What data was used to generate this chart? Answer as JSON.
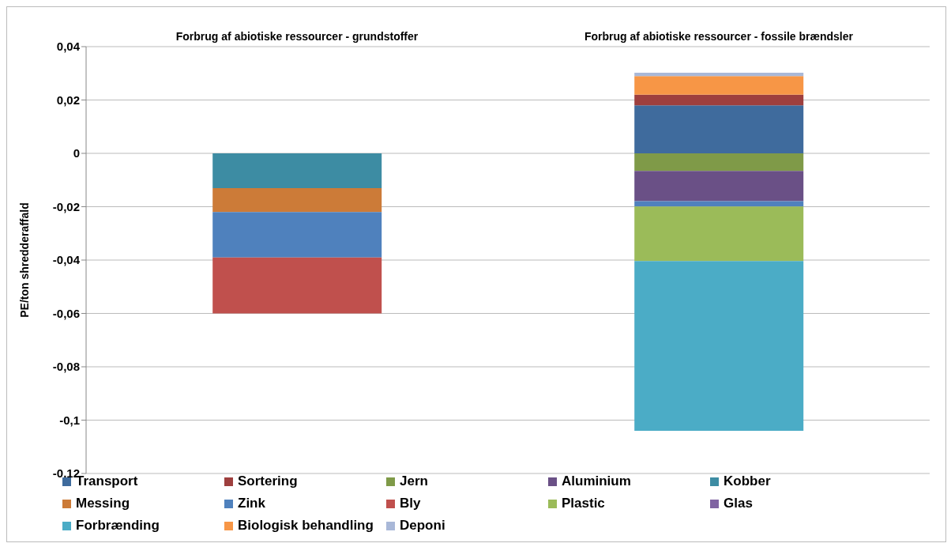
{
  "chart_data": {
    "type": "bar",
    "stacked": true,
    "ylabel": "PE/ton shredderaffald",
    "categories": [
      "Forbrug af abiotiske ressourcer - grundstoffer",
      "Forbrug af abiotiske ressourcer - fossile brændsler"
    ],
    "series": [
      {
        "name": "Transport",
        "color": "#3f6b9d",
        "values": [
          null,
          0.018
        ]
      },
      {
        "name": "Sortering",
        "color": "#9e3f3e",
        "values": [
          null,
          0.004
        ]
      },
      {
        "name": "Jern",
        "color": "#7f9a48",
        "values": [
          null,
          -0.0066
        ]
      },
      {
        "name": "Aluminium",
        "color": "#6a5086",
        "values": [
          null,
          -0.0113
        ]
      },
      {
        "name": "Kobber",
        "color": "#3d8ca3",
        "values": [
          -0.013,
          null
        ]
      },
      {
        "name": "Messing",
        "color": "#cc7b38",
        "values": [
          -0.009,
          null
        ]
      },
      {
        "name": "Zink",
        "color": "#4f81bd",
        "values": [
          -0.017,
          -0.002
        ]
      },
      {
        "name": "Bly",
        "color": "#c0504d",
        "values": [
          -0.021,
          null
        ]
      },
      {
        "name": "Plastic",
        "color": "#9bbb59",
        "values": [
          null,
          -0.0205
        ]
      },
      {
        "name": "Glas",
        "color": "#8064a2",
        "values": [
          null,
          null
        ]
      },
      {
        "name": "Forbrænding",
        "color": "#4bacc6",
        "values": [
          null,
          -0.0636
        ]
      },
      {
        "name": "Biologisk behandling",
        "color": "#f79646",
        "values": [
          null,
          0.007
        ]
      },
      {
        "name": "Deponi",
        "color": "#a9b8d8",
        "values": [
          null,
          0.0012
        ]
      }
    ],
    "ylim": [
      -0.12,
      0.04
    ],
    "yticks": [
      {
        "value": -0.12,
        "label": "-0,12"
      },
      {
        "value": -0.1,
        "label": "-0,1"
      },
      {
        "value": -0.08,
        "label": "-0,08"
      },
      {
        "value": -0.06,
        "label": "-0,06"
      },
      {
        "value": -0.04,
        "label": "-0,04"
      },
      {
        "value": -0.02,
        "label": "-0,02"
      },
      {
        "value": 0,
        "label": "0"
      },
      {
        "value": 0.02,
        "label": "0,02"
      },
      {
        "value": 0.04,
        "label": "0,04"
      }
    ],
    "grid": "y",
    "legend": "bottom"
  }
}
